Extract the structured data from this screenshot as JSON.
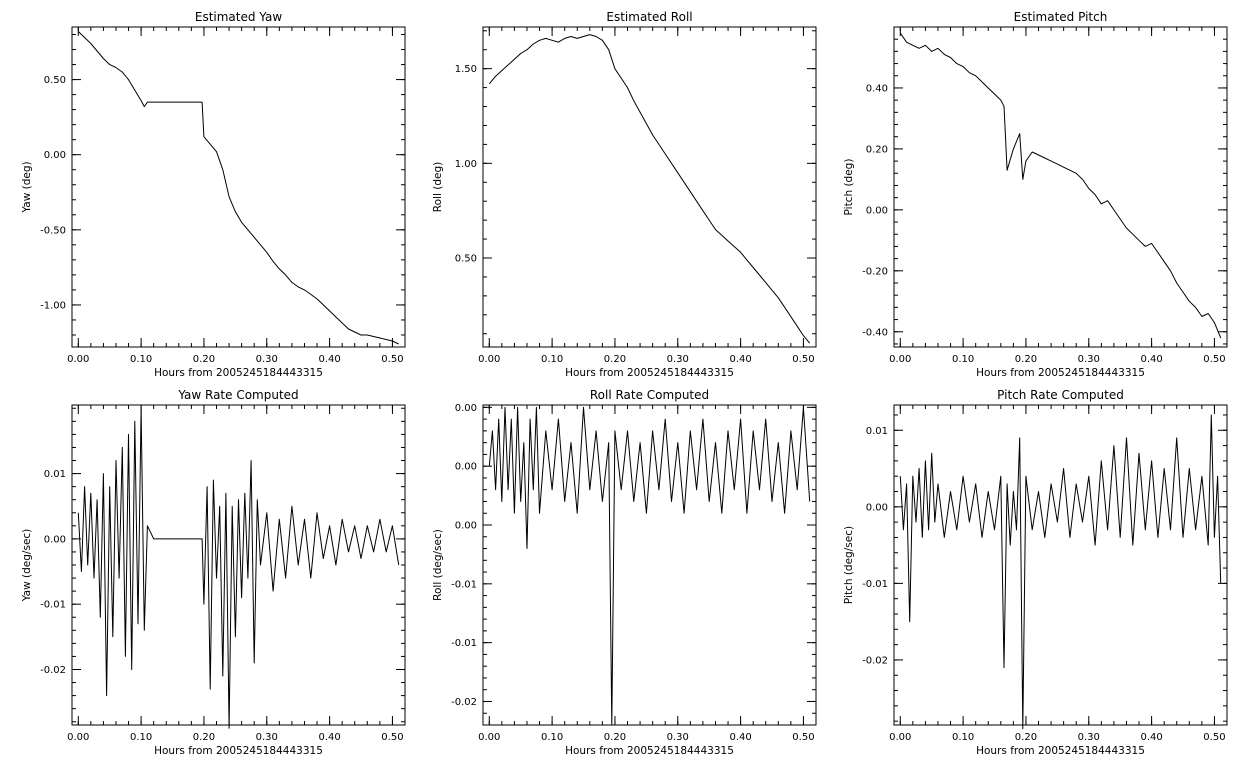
{
  "chart_data": [
    {
      "type": "line",
      "title": "Estimated Yaw",
      "xlabel": "Hours from 2005245184443315",
      "ylabel": "Yaw (deg)",
      "xlim": [
        -0.01,
        0.52
      ],
      "ylim": [
        -1.28,
        0.85
      ],
      "xticks": [
        0,
        0.1,
        0.2,
        0.3,
        0.4,
        0.5
      ],
      "xtick_labels": [
        "0.00",
        "0.10",
        "0.20",
        "0.30",
        "0.40",
        "0.50"
      ],
      "yticks": [
        -1.0,
        -0.5,
        0.0,
        0.5
      ],
      "ytick_labels": [
        "-1.00",
        "-0.50",
        "0.00",
        "0.50"
      ],
      "grid": false,
      "series": [
        {
          "x": [
            0.0,
            0.01,
            0.02,
            0.03,
            0.04,
            0.05,
            0.06,
            0.07,
            0.08,
            0.09,
            0.1,
            0.105,
            0.11,
            0.12,
            0.15,
            0.18,
            0.197,
            0.2,
            0.21,
            0.22,
            0.23,
            0.24,
            0.25,
            0.26,
            0.27,
            0.28,
            0.29,
            0.3,
            0.31,
            0.32,
            0.33,
            0.34,
            0.35,
            0.36,
            0.37,
            0.38,
            0.39,
            0.4,
            0.41,
            0.42,
            0.43,
            0.44,
            0.45,
            0.46,
            0.47,
            0.48,
            0.49,
            0.5,
            0.51
          ],
          "y": [
            0.82,
            0.78,
            0.74,
            0.69,
            0.64,
            0.6,
            0.58,
            0.55,
            0.5,
            0.43,
            0.36,
            0.32,
            0.35,
            0.35,
            0.35,
            0.35,
            0.35,
            0.12,
            0.07,
            0.02,
            -0.1,
            -0.28,
            -0.38,
            -0.45,
            -0.5,
            -0.55,
            -0.6,
            -0.65,
            -0.71,
            -0.76,
            -0.8,
            -0.85,
            -0.88,
            -0.9,
            -0.93,
            -0.96,
            -1.0,
            -1.04,
            -1.08,
            -1.12,
            -1.16,
            -1.18,
            -1.2,
            -1.2,
            -1.21,
            -1.22,
            -1.23,
            -1.24,
            -1.26
          ]
        }
      ]
    },
    {
      "type": "line",
      "title": "Estimated Roll",
      "xlabel": "Hours from 2005245184443315",
      "ylabel": "Roll (deg)",
      "xlim": [
        -0.01,
        0.52
      ],
      "ylim": [
        0.03,
        1.72
      ],
      "xticks": [
        0,
        0.1,
        0.2,
        0.3,
        0.4,
        0.5
      ],
      "xtick_labels": [
        "0.00",
        "0.10",
        "0.20",
        "0.30",
        "0.40",
        "0.50"
      ],
      "yticks": [
        0.5,
        1.0,
        1.5
      ],
      "ytick_labels": [
        "0.50",
        "1.00",
        "1.50"
      ],
      "grid": false,
      "series": [
        {
          "x": [
            0.0,
            0.01,
            0.02,
            0.03,
            0.04,
            0.05,
            0.06,
            0.07,
            0.08,
            0.09,
            0.1,
            0.11,
            0.12,
            0.13,
            0.14,
            0.15,
            0.16,
            0.17,
            0.18,
            0.19,
            0.2,
            0.21,
            0.22,
            0.23,
            0.24,
            0.25,
            0.26,
            0.27,
            0.28,
            0.29,
            0.3,
            0.31,
            0.32,
            0.33,
            0.34,
            0.35,
            0.36,
            0.37,
            0.38,
            0.39,
            0.4,
            0.41,
            0.42,
            0.43,
            0.44,
            0.45,
            0.46,
            0.47,
            0.48,
            0.49,
            0.5,
            0.51
          ],
          "y": [
            1.42,
            1.46,
            1.49,
            1.52,
            1.55,
            1.58,
            1.6,
            1.63,
            1.65,
            1.66,
            1.65,
            1.64,
            1.66,
            1.67,
            1.66,
            1.67,
            1.68,
            1.67,
            1.65,
            1.6,
            1.5,
            1.45,
            1.4,
            1.33,
            1.27,
            1.21,
            1.15,
            1.1,
            1.05,
            1.0,
            0.95,
            0.9,
            0.85,
            0.8,
            0.75,
            0.7,
            0.65,
            0.62,
            0.59,
            0.56,
            0.53,
            0.49,
            0.45,
            0.41,
            0.37,
            0.33,
            0.29,
            0.24,
            0.19,
            0.14,
            0.09,
            0.05
          ]
        }
      ]
    },
    {
      "type": "line",
      "title": "Estimated Pitch",
      "xlabel": "Hours from 2005245184443315",
      "ylabel": "Pitch (deg)",
      "xlim": [
        -0.01,
        0.52
      ],
      "ylim": [
        -0.45,
        0.6
      ],
      "xticks": [
        0,
        0.1,
        0.2,
        0.3,
        0.4,
        0.5
      ],
      "xtick_labels": [
        "0.00",
        "0.10",
        "0.20",
        "0.30",
        "0.40",
        "0.50"
      ],
      "yticks": [
        -0.4,
        -0.2,
        0.0,
        0.2,
        0.4
      ],
      "ytick_labels": [
        "-0.40",
        "-0.20",
        "0.00",
        "0.20",
        "0.40"
      ],
      "grid": false,
      "series": [
        {
          "x": [
            0.0,
            0.01,
            0.02,
            0.03,
            0.04,
            0.05,
            0.06,
            0.07,
            0.08,
            0.09,
            0.1,
            0.11,
            0.12,
            0.13,
            0.14,
            0.15,
            0.16,
            0.165,
            0.17,
            0.18,
            0.19,
            0.195,
            0.2,
            0.21,
            0.22,
            0.23,
            0.24,
            0.25,
            0.26,
            0.27,
            0.28,
            0.29,
            0.3,
            0.31,
            0.32,
            0.33,
            0.34,
            0.35,
            0.36,
            0.37,
            0.38,
            0.39,
            0.4,
            0.41,
            0.42,
            0.43,
            0.44,
            0.45,
            0.46,
            0.47,
            0.48,
            0.49,
            0.5,
            0.51
          ],
          "y": [
            0.58,
            0.55,
            0.54,
            0.53,
            0.54,
            0.52,
            0.53,
            0.51,
            0.5,
            0.48,
            0.47,
            0.45,
            0.44,
            0.42,
            0.4,
            0.38,
            0.36,
            0.34,
            0.13,
            0.2,
            0.25,
            0.1,
            0.16,
            0.19,
            0.18,
            0.17,
            0.16,
            0.15,
            0.14,
            0.13,
            0.12,
            0.1,
            0.07,
            0.05,
            0.02,
            0.03,
            0.0,
            -0.03,
            -0.06,
            -0.08,
            -0.1,
            -0.12,
            -0.11,
            -0.14,
            -0.17,
            -0.2,
            -0.24,
            -0.27,
            -0.3,
            -0.32,
            -0.35,
            -0.34,
            -0.37,
            -0.42
          ]
        }
      ]
    },
    {
      "type": "line",
      "title": "Yaw Rate Computed",
      "xlabel": "Hours from 2005245184443315",
      "ylabel": "Yaw (deg/sec)",
      "xlim": [
        -0.01,
        0.52
      ],
      "ylim": [
        -0.0285,
        0.0205
      ],
      "xticks": [
        0,
        0.1,
        0.2,
        0.3,
        0.4,
        0.5
      ],
      "xtick_labels": [
        "0.00",
        "0.10",
        "0.20",
        "0.30",
        "0.40",
        "0.50"
      ],
      "yticks": [
        -0.02,
        -0.01,
        0.0,
        0.01
      ],
      "ytick_labels": [
        "-0.02",
        "-0.01",
        "0.00",
        "0.01"
      ],
      "grid": false,
      "series": [
        {
          "x": [
            0.0,
            0.005,
            0.01,
            0.015,
            0.02,
            0.025,
            0.03,
            0.035,
            0.04,
            0.045,
            0.05,
            0.055,
            0.06,
            0.065,
            0.07,
            0.075,
            0.08,
            0.085,
            0.09,
            0.095,
            0.1,
            0.105,
            0.11,
            0.12,
            0.15,
            0.18,
            0.197,
            0.2,
            0.205,
            0.21,
            0.215,
            0.22,
            0.225,
            0.23,
            0.235,
            0.24,
            0.245,
            0.25,
            0.255,
            0.26,
            0.265,
            0.27,
            0.275,
            0.28,
            0.285,
            0.29,
            0.3,
            0.31,
            0.32,
            0.33,
            0.34,
            0.35,
            0.36,
            0.37,
            0.38,
            0.39,
            0.4,
            0.41,
            0.42,
            0.43,
            0.44,
            0.45,
            0.46,
            0.47,
            0.48,
            0.49,
            0.5,
            0.51
          ],
          "y": [
            0.004,
            -0.005,
            0.008,
            -0.004,
            0.007,
            -0.006,
            0.006,
            -0.012,
            0.01,
            -0.024,
            0.008,
            -0.015,
            0.012,
            -0.006,
            0.014,
            -0.018,
            0.016,
            -0.02,
            0.018,
            -0.013,
            0.02,
            -0.014,
            0.002,
            0.0,
            0.0,
            0.0,
            0.0,
            -0.01,
            0.008,
            -0.023,
            0.009,
            -0.006,
            0.005,
            -0.021,
            0.007,
            -0.029,
            0.005,
            -0.015,
            0.006,
            -0.009,
            0.007,
            -0.006,
            0.012,
            -0.019,
            0.006,
            -0.004,
            0.004,
            -0.008,
            0.003,
            -0.006,
            0.005,
            -0.004,
            0.003,
            -0.006,
            0.004,
            -0.003,
            0.002,
            -0.004,
            0.003,
            -0.002,
            0.002,
            -0.003,
            0.002,
            -0.002,
            0.003,
            -0.002,
            0.002,
            -0.004
          ]
        }
      ]
    },
    {
      "type": "line",
      "title": "Roll Rate Computed",
      "xlabel": "Hours from 2005245184443315",
      "ylabel": "Roll (deg/sec)",
      "xlim": [
        -0.01,
        0.52
      ],
      "ylim": [
        -0.022,
        0.0052
      ],
      "xticks": [
        0,
        0.1,
        0.2,
        0.3,
        0.4,
        0.5
      ],
      "xtick_labels": [
        "0.00",
        "0.10",
        "0.20",
        "0.30",
        "0.40",
        "0.50"
      ],
      "yticks": [
        -0.02,
        -0.015,
        -0.01,
        -0.005,
        0.0,
        0.005
      ],
      "ytick_labels": [
        "-0.02",
        "-0.01",
        "-0.01",
        "0.00",
        "0.00",
        "0.00"
      ],
      "grid": false,
      "series": [
        {
          "x": [
            0.0,
            0.005,
            0.01,
            0.015,
            0.02,
            0.025,
            0.03,
            0.035,
            0.04,
            0.045,
            0.05,
            0.055,
            0.06,
            0.065,
            0.07,
            0.075,
            0.08,
            0.09,
            0.1,
            0.11,
            0.12,
            0.13,
            0.14,
            0.15,
            0.16,
            0.17,
            0.18,
            0.19,
            0.195,
            0.2,
            0.21,
            0.22,
            0.23,
            0.24,
            0.25,
            0.26,
            0.27,
            0.28,
            0.29,
            0.3,
            0.31,
            0.32,
            0.33,
            0.34,
            0.35,
            0.36,
            0.37,
            0.38,
            0.39,
            0.4,
            0.41,
            0.42,
            0.43,
            0.44,
            0.45,
            0.46,
            0.47,
            0.48,
            0.49,
            0.5,
            0.51
          ],
          "y": [
            0.0,
            0.003,
            -0.002,
            0.004,
            -0.003,
            0.005,
            -0.002,
            0.004,
            -0.004,
            0.005,
            -0.003,
            0.002,
            -0.007,
            0.004,
            -0.002,
            0.005,
            -0.004,
            0.003,
            -0.002,
            0.004,
            -0.003,
            0.002,
            -0.004,
            0.005,
            -0.002,
            0.003,
            -0.003,
            0.002,
            -0.022,
            0.003,
            -0.002,
            0.003,
            -0.003,
            0.002,
            -0.004,
            0.003,
            -0.002,
            0.004,
            -0.003,
            0.002,
            -0.004,
            0.003,
            -0.002,
            0.004,
            -0.003,
            0.002,
            -0.004,
            0.003,
            -0.002,
            0.004,
            -0.004,
            0.003,
            -0.002,
            0.004,
            -0.003,
            0.002,
            -0.004,
            0.003,
            -0.002,
            0.005,
            -0.003
          ]
        }
      ]
    },
    {
      "type": "line",
      "title": "Pitch Rate Computed",
      "xlabel": "Hours from 2005245184443315",
      "ylabel": "Pitch (deg/sec)",
      "xlim": [
        -0.01,
        0.52
      ],
      "ylim": [
        -0.0285,
        0.0133
      ],
      "xticks": [
        0,
        0.1,
        0.2,
        0.3,
        0.4,
        0.5
      ],
      "xtick_labels": [
        "0.00",
        "0.10",
        "0.20",
        "0.30",
        "0.40",
        "0.50"
      ],
      "yticks": [
        -0.02,
        -0.01,
        0.0,
        0.01
      ],
      "ytick_labels": [
        "-0.02",
        "-0.01",
        "0.00",
        "0.01"
      ],
      "grid": false,
      "series": [
        {
          "x": [
            0.0,
            0.005,
            0.01,
            0.015,
            0.02,
            0.025,
            0.03,
            0.035,
            0.04,
            0.045,
            0.05,
            0.055,
            0.06,
            0.07,
            0.08,
            0.09,
            0.1,
            0.11,
            0.12,
            0.13,
            0.14,
            0.15,
            0.16,
            0.165,
            0.17,
            0.175,
            0.18,
            0.185,
            0.19,
            0.195,
            0.2,
            0.21,
            0.22,
            0.23,
            0.24,
            0.25,
            0.26,
            0.27,
            0.28,
            0.29,
            0.3,
            0.31,
            0.32,
            0.33,
            0.34,
            0.35,
            0.36,
            0.37,
            0.38,
            0.39,
            0.4,
            0.41,
            0.42,
            0.43,
            0.44,
            0.45,
            0.46,
            0.47,
            0.48,
            0.49,
            0.495,
            0.5,
            0.505,
            0.51
          ],
          "y": [
            0.004,
            -0.003,
            0.003,
            -0.015,
            0.004,
            -0.002,
            0.005,
            -0.004,
            0.006,
            -0.003,
            0.007,
            -0.002,
            0.003,
            -0.004,
            0.002,
            -0.003,
            0.004,
            -0.002,
            0.003,
            -0.004,
            0.002,
            -0.003,
            0.004,
            -0.021,
            0.003,
            -0.005,
            0.002,
            -0.003,
            0.009,
            -0.029,
            0.004,
            -0.003,
            0.002,
            -0.004,
            0.003,
            -0.002,
            0.005,
            -0.004,
            0.003,
            -0.002,
            0.004,
            -0.005,
            0.006,
            -0.003,
            0.008,
            -0.004,
            0.009,
            -0.005,
            0.007,
            -0.003,
            0.006,
            -0.004,
            0.005,
            -0.003,
            0.009,
            -0.004,
            0.005,
            -0.003,
            0.004,
            -0.005,
            0.012,
            -0.004,
            0.004,
            -0.01
          ]
        }
      ]
    }
  ]
}
